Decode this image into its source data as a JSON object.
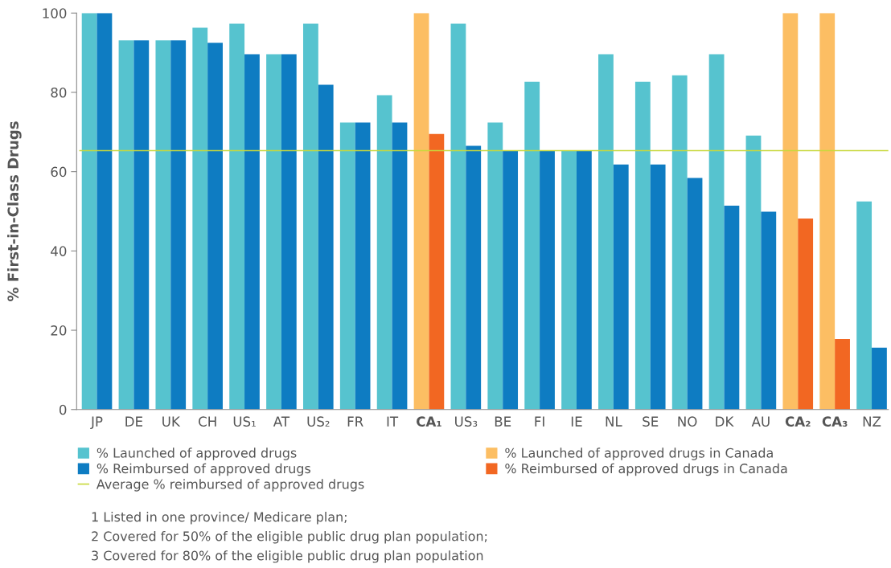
{
  "chart_data": {
    "type": "bar",
    "ylabel": "% First-in-Class Drugs",
    "categories": [
      "JP",
      "DE",
      "UK",
      "CH",
      "US₁",
      "AT",
      "US₂",
      "FR",
      "IT",
      "CA₁",
      "US₃",
      "BE",
      "FI",
      "IE",
      "NL",
      "SE",
      "NO",
      "DK",
      "AU",
      "CA₂",
      "CA₃",
      "NZ"
    ],
    "series": [
      {
        "name": "% Launched of approved drugs",
        "color": "#56c3cf",
        "values": [
          100,
          93.1,
          93.1,
          96.3,
          97.3,
          89.6,
          97.3,
          72.4,
          79.3,
          null,
          97.3,
          72.4,
          82.7,
          65.4,
          89.6,
          82.7,
          84.3,
          89.6,
          69.1,
          null,
          null,
          52.5
        ]
      },
      {
        "name": "% Reimbursed of approved drugs",
        "color": "#0e7cc2",
        "values": [
          100,
          93.1,
          93.1,
          92.5,
          89.6,
          89.6,
          81.9,
          72.4,
          72.4,
          null,
          66.5,
          65.4,
          65.4,
          65.4,
          61.8,
          61.8,
          58.4,
          51.4,
          49.9,
          null,
          null,
          15.6
        ]
      },
      {
        "name": "% Launched of approved drugs in Canada",
        "color": "#fcbe63",
        "values": [
          null,
          null,
          null,
          null,
          null,
          null,
          null,
          null,
          null,
          100,
          null,
          null,
          null,
          null,
          null,
          null,
          null,
          null,
          null,
          100,
          100,
          null
        ]
      },
      {
        "name": "% Reimbursed of approved drugs in Canada",
        "color": "#f26722",
        "values": [
          null,
          null,
          null,
          null,
          null,
          null,
          null,
          null,
          null,
          69.5,
          null,
          null,
          null,
          null,
          null,
          null,
          null,
          null,
          null,
          48.2,
          17.8,
          null
        ]
      }
    ],
    "ylim": [
      0,
      100
    ],
    "yticks": [
      0,
      20,
      40,
      60,
      80,
      100
    ],
    "grid": false,
    "legend": "bottom",
    "ref_lines": [
      {
        "axis": "y",
        "value": 65.3,
        "label": "Average % reimbursed of approved drugs",
        "color": "#c8d83c",
        "line_style": "solid"
      }
    ],
    "annotations": [
      "1 Listed in one province/ Medicare plan;",
      "2 Covered for 50% of the eligible public drug plan population;",
      "3 Covered for 80% of the eligible public drug plan population"
    ]
  }
}
